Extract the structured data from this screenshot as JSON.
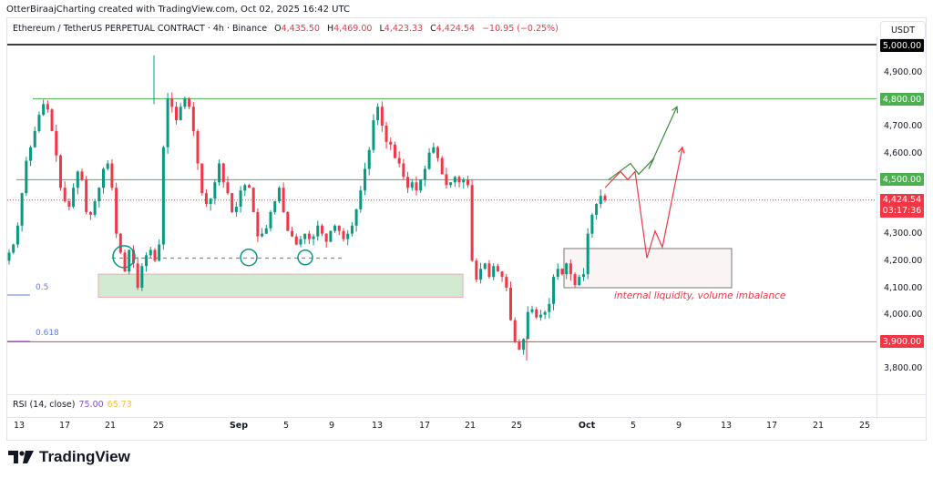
{
  "credit": "OtterBiraajCharting created with TradingView.com, Oct 02, 2025 16:42 UTC",
  "legend": {
    "symbol": "Ethereum / TetherUS PERPETUAL CONTRACT · 4h · Binance",
    "o_label": "O",
    "o": "4,435.50",
    "h_label": "H",
    "h": "4,469.00",
    "l_label": "L",
    "l": "4,423.33",
    "c_label": "C",
    "c": "4,424.54",
    "change": "−10.95 (−0.25%)"
  },
  "currency": "USDT",
  "price_tags": {
    "p5000": "5,000.00",
    "p4800": "4,800.00",
    "p4500": "4,500.00",
    "last_price": "4,424.54",
    "countdown": "03:17:36",
    "p3900": "3,900.00"
  },
  "rsi": {
    "label": "RSI (14, close)",
    "value1": "75.00",
    "value2": "65.73"
  },
  "annotation": "internal liquidity, volume imbalance",
  "fib": {
    "f05": "0.5",
    "f0618": "0.618"
  },
  "brand": "TradingView",
  "colors": {
    "up": "#089981",
    "down": "#f23645",
    "green_level": "#4caf50",
    "red_level": "#f23645",
    "black_level": "#000000"
  },
  "chart_data": {
    "type": "candlestick",
    "title": "Ethereum / TetherUS PERPETUAL CONTRACT · 4h · Binance",
    "xlabel": "",
    "ylabel": "USDT",
    "ylim": [
      3730,
      5050
    ],
    "y_ticks": [
      "3,800.00",
      "3,900.00",
      "4,000.00",
      "4,100.00",
      "4,200.00",
      "4,300.00",
      "4,400.00",
      "4,500.00",
      "4,600.00",
      "4,700.00",
      "4,800.00",
      "4,900.00",
      "5,000.00"
    ],
    "x_ticks": [
      {
        "label": "13",
        "x": 13
      },
      {
        "label": "17",
        "x": 63
      },
      {
        "label": "21",
        "x": 113
      },
      {
        "label": "25",
        "x": 166
      },
      {
        "label": "Sep",
        "x": 254,
        "bold": true
      },
      {
        "label": "5",
        "x": 306
      },
      {
        "label": "9",
        "x": 356
      },
      {
        "label": "13",
        "x": 406
      },
      {
        "label": "17",
        "x": 458
      },
      {
        "label": "21",
        "x": 508
      },
      {
        "label": "25",
        "x": 559
      },
      {
        "label": "Oct",
        "x": 636,
        "bold": true
      },
      {
        "label": "5",
        "x": 687
      },
      {
        "label": "9",
        "x": 737
      },
      {
        "label": "13",
        "x": 789
      },
      {
        "label": "17",
        "x": 839
      },
      {
        "label": "21",
        "x": 890
      },
      {
        "label": "25",
        "x": 941
      }
    ],
    "levels": [
      {
        "price": 5000,
        "color": "#000000",
        "style": "solid",
        "from_x": 0
      },
      {
        "price": 4800,
        "color": "#4caf50",
        "style": "solid",
        "from_x": 28
      },
      {
        "price": 4500,
        "color": "#4caf50",
        "style": "solid",
        "from_x": 10
      },
      {
        "price": 4424.54,
        "color": "#f23645",
        "style": "dotted",
        "from_x": 0
      },
      {
        "price": 3900,
        "color": "#f23645",
        "style": "solid",
        "from_x": 0
      }
    ],
    "closes": [
      4230,
      4260,
      4330,
      4450,
      4570,
      4620,
      4680,
      4740,
      4780,
      4760,
      4680,
      4590,
      4470,
      4420,
      4400,
      4470,
      4530,
      4500,
      4380,
      4370,
      4420,
      4470,
      4540,
      4560,
      4470,
      4300,
      4230,
      4160,
      4240,
      4190,
      4100,
      4180,
      4220,
      4240,
      4200,
      4260,
      4620,
      4800,
      4770,
      4720,
      4770,
      4800,
      4770,
      4680,
      4560,
      4450,
      4410,
      4430,
      4490,
      4560,
      4490,
      4450,
      4380,
      4400,
      4460,
      4480,
      4470,
      4380,
      4290,
      4300,
      4320,
      4380,
      4420,
      4470,
      4380,
      4310,
      4290,
      4260,
      4280,
      4300,
      4280,
      4290,
      4330,
      4300,
      4270,
      4310,
      4330,
      4310,
      4280,
      4300,
      4330,
      4390,
      4460,
      4540,
      4610,
      4720,
      4770,
      4700,
      4640,
      4630,
      4580,
      4560,
      4510,
      4470,
      4490,
      4460,
      4500,
      4540,
      4600,
      4620,
      4580,
      4520,
      4480,
      4490,
      4510,
      4490,
      4500,
      4480,
      4200,
      4130,
      4170,
      4190,
      4140,
      4180,
      4160,
      4140,
      4100,
      3980,
      3900,
      3870,
      3910,
      4010,
      4020,
      3990,
      4000,
      4010,
      4040,
      4140,
      4170,
      4150,
      4190,
      4150,
      4110,
      4140,
      4150,
      4300,
      4370,
      4410,
      4440,
      4424
    ],
    "annotations": [
      {
        "type": "rect",
        "label": "demand zone",
        "price_top": 4150,
        "price_bottom": 4065,
        "x_from": 100,
        "x_to": 500,
        "fill": "#d1ead1",
        "stroke": "#f3a5ab"
      },
      {
        "type": "rect",
        "label": "internal liquidity, volume imbalance",
        "price_top": 4245,
        "price_bottom": 4100,
        "x_from": 611,
        "x_to": 795,
        "fill": "#fbf4f4",
        "stroke": "#777777"
      },
      {
        "type": "hline-dashed",
        "price": 4210,
        "x_from": 115,
        "x_to": 367
      },
      {
        "type": "circle",
        "x": 128,
        "price": 4215,
        "r": 12
      },
      {
        "type": "circle",
        "x": 265,
        "price": 4212,
        "r": 9
      },
      {
        "type": "circle",
        "x": 327,
        "price": 4212,
        "r": 8
      },
      {
        "type": "path",
        "color": "#3c8d40",
        "label": "bullish scenario",
        "points": [
          [
            660,
            4500
          ],
          [
            684,
            4560
          ],
          [
            693,
            4520
          ],
          [
            710,
            4580
          ],
          [
            704,
            4540
          ],
          [
            735,
            4770
          ]
        ]
      },
      {
        "type": "path",
        "color": "#f23645",
        "label": "bearish-then-bullish scenario",
        "points": [
          [
            656,
            4470
          ],
          [
            673,
            4530
          ],
          [
            681,
            4500
          ],
          [
            689,
            4530
          ],
          [
            702,
            4210
          ],
          [
            711,
            4310
          ],
          [
            719,
            4250
          ],
          [
            741,
            4620
          ]
        ]
      }
    ]
  }
}
